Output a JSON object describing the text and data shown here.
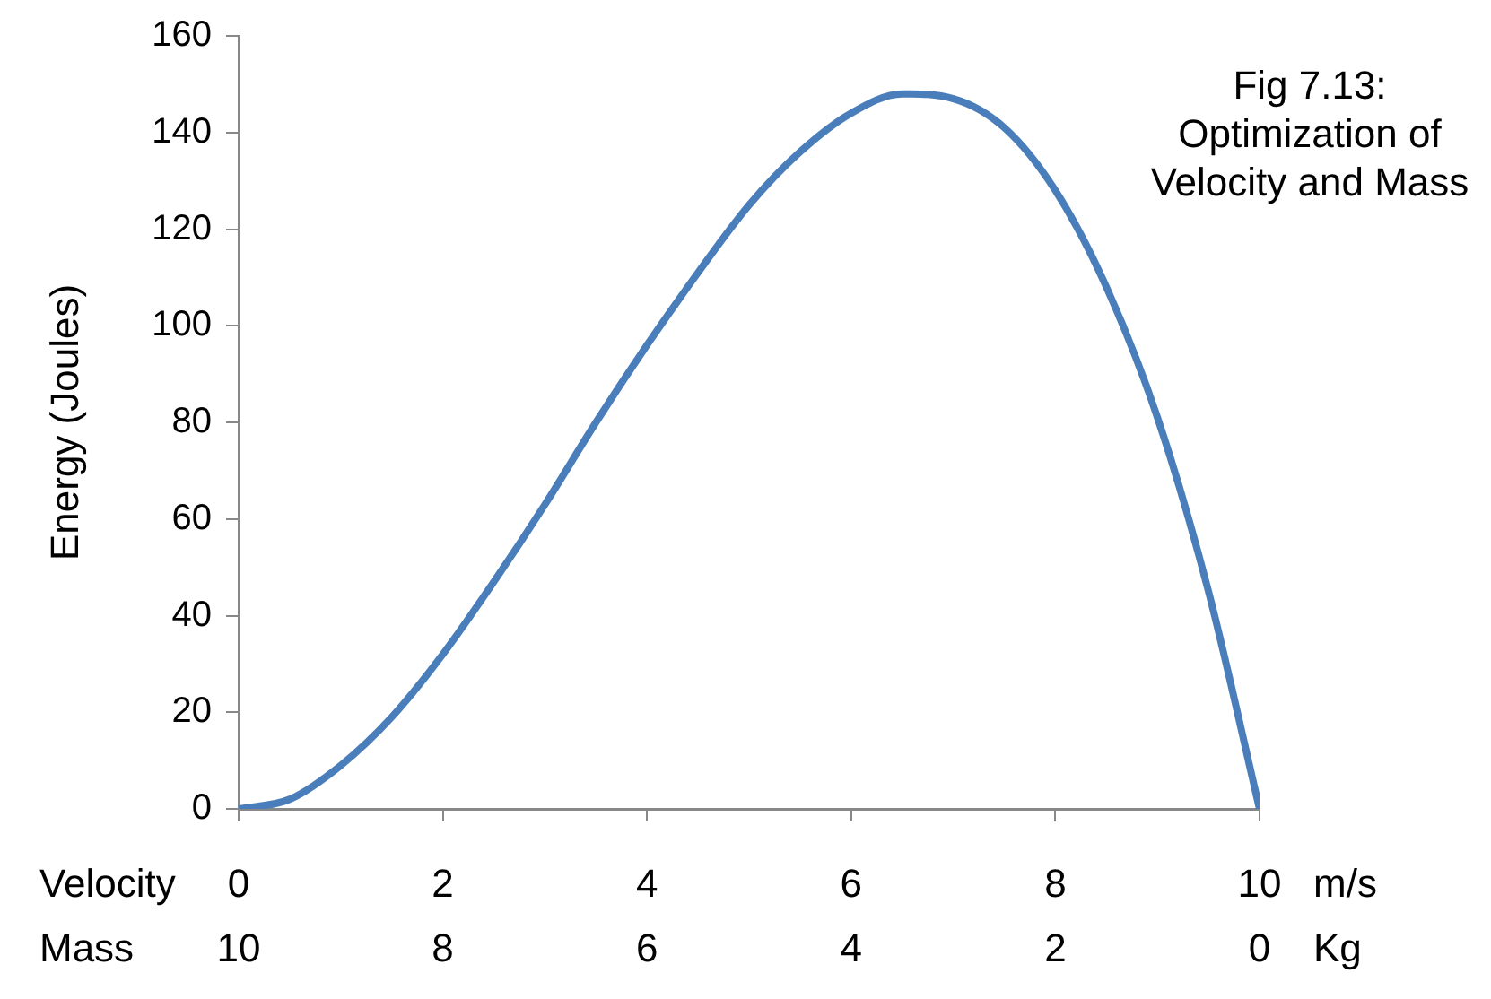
{
  "chart_data": {
    "type": "line",
    "title": "Fig 7.13: Optimization of Velocity and Mass",
    "ylabel": "Energy (Joules)",
    "xlabel": "Velocity",
    "x2label": "Mass",
    "x": [
      0,
      0.5,
      1,
      1.5,
      2,
      2.5,
      3,
      3.5,
      4,
      4.5,
      5,
      5.5,
      6,
      6.5,
      7,
      7.5,
      8,
      8.5,
      9,
      9.5,
      10
    ],
    "series": [
      {
        "color": "#4a7ebb",
        "values": [
          0,
          2,
          9,
          19,
          32,
          47,
          63,
          80,
          96,
          111,
          125,
          136,
          144,
          148,
          147,
          141,
          128,
          108,
          81,
          45,
          0
        ]
      }
    ],
    "xlim": [
      0,
      10
    ],
    "xticks": [
      0,
      2,
      4,
      6,
      8,
      10
    ],
    "x2lim": [
      10,
      0
    ],
    "x2ticks": [
      10,
      8,
      6,
      4,
      2,
      0
    ],
    "ylim": [
      0,
      160
    ],
    "yticks": [
      0,
      20,
      40,
      60,
      80,
      100,
      120,
      140,
      160
    ],
    "annotations": [
      "m/s",
      "Kg"
    ],
    "grid": false,
    "legend": false,
    "marker": "none",
    "line_style": "solid"
  }
}
